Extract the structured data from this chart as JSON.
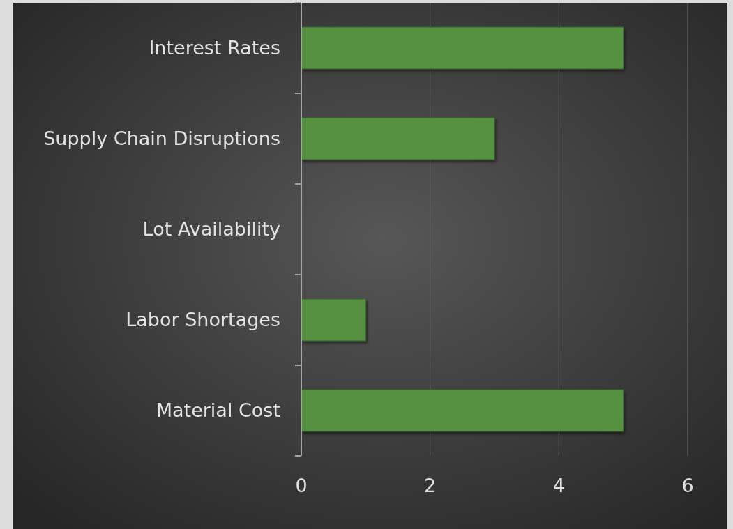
{
  "chart_data": {
    "type": "bar",
    "orientation": "horizontal",
    "categories": [
      "Interest Rates",
      "Supply Chain Disruptions",
      "Lot Availability",
      "Labor Shortages",
      "Material Cost"
    ],
    "values": [
      5,
      3,
      0,
      1,
      5
    ],
    "color": "#559140",
    "xlim": [
      0,
      6
    ],
    "xticks": [
      0,
      2,
      4,
      6
    ],
    "grid": "x"
  }
}
